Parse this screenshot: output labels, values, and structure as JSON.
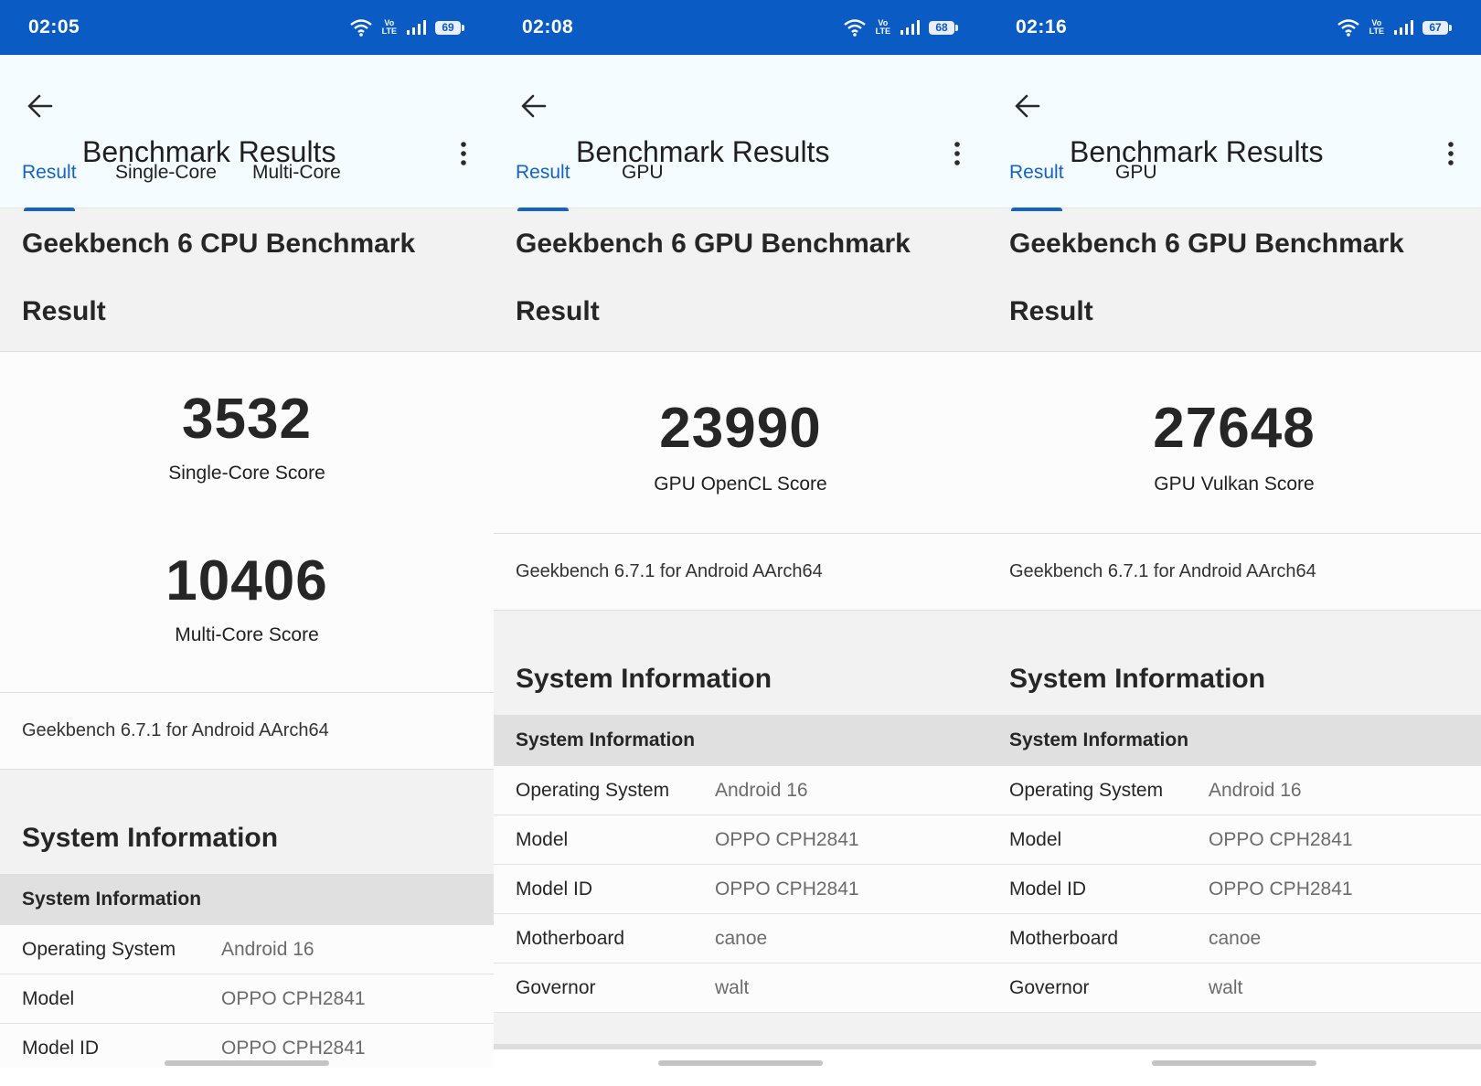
{
  "screens": [
    {
      "status": {
        "time": "02:05",
        "volte": "Vo LTE",
        "battery": "69"
      },
      "app": {
        "title": "Benchmark Results"
      },
      "tabs": [
        "Result",
        "Single-Core",
        "Multi-Core"
      ],
      "heading": "Geekbench 6 CPU Benchmark",
      "result_heading": "Result",
      "scores": [
        {
          "value": "3532",
          "label": "Single-Core Score"
        },
        {
          "value": "10406",
          "label": "Multi-Core Score"
        }
      ],
      "version": "Geekbench 6.7.1 for Android AArch64",
      "sysinfo_heading": "System Information",
      "table_header": "System Information",
      "rows": [
        {
          "key": "Operating System",
          "value": "Android 16"
        },
        {
          "key": "Model",
          "value": "OPPO CPH2841"
        },
        {
          "key": "Model ID",
          "value": "OPPO CPH2841"
        }
      ]
    },
    {
      "status": {
        "time": "02:08",
        "volte": "Vo LTE",
        "battery": "68"
      },
      "app": {
        "title": "Benchmark Results"
      },
      "tabs": [
        "Result",
        "GPU"
      ],
      "heading": "Geekbench 6 GPU Benchmark",
      "result_heading": "Result",
      "scores": [
        {
          "value": "23990",
          "label": "GPU OpenCL Score"
        }
      ],
      "version": "Geekbench 6.7.1 for Android AArch64",
      "sysinfo_heading": "System Information",
      "table_header": "System Information",
      "rows": [
        {
          "key": "Operating System",
          "value": "Android 16"
        },
        {
          "key": "Model",
          "value": "OPPO CPH2841"
        },
        {
          "key": "Model ID",
          "value": "OPPO CPH2841"
        },
        {
          "key": "Motherboard",
          "value": "canoe"
        },
        {
          "key": "Governor",
          "value": "walt"
        }
      ]
    },
    {
      "status": {
        "time": "02:16",
        "volte": "Vo LTE",
        "battery": "67"
      },
      "app": {
        "title": "Benchmark Results"
      },
      "tabs": [
        "Result",
        "GPU"
      ],
      "heading": "Geekbench 6 GPU Benchmark",
      "result_heading": "Result",
      "scores": [
        {
          "value": "27648",
          "label": "GPU Vulkan Score"
        }
      ],
      "version": "Geekbench 6.7.1 for Android AArch64",
      "sysinfo_heading": "System Information",
      "table_header": "System Information",
      "rows": [
        {
          "key": "Operating System",
          "value": "Android 16"
        },
        {
          "key": "Model",
          "value": "OPPO CPH2841"
        },
        {
          "key": "Model ID",
          "value": "OPPO CPH2841"
        },
        {
          "key": "Motherboard",
          "value": "canoe"
        },
        {
          "key": "Governor",
          "value": "walt"
        }
      ]
    }
  ]
}
